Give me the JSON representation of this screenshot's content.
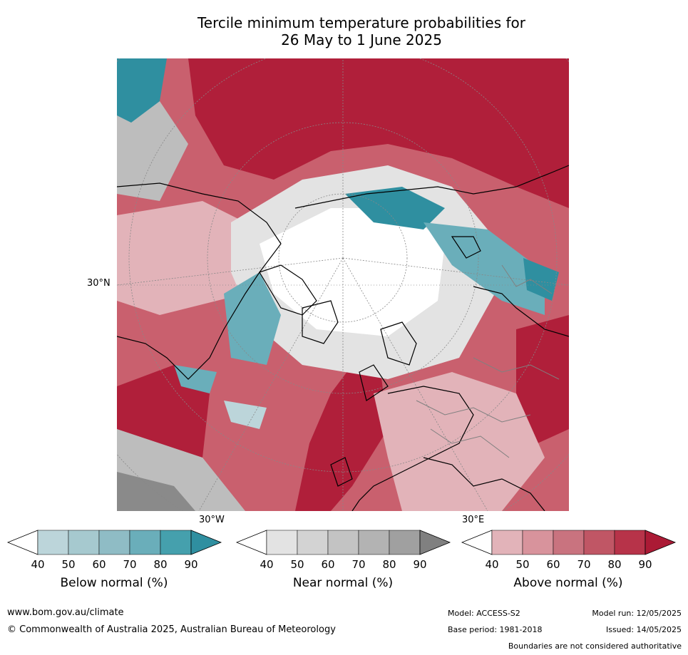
{
  "title": {
    "line1": "Tercile minimum temperature probabilities for",
    "line2": "26 May to 1 June 2025"
  },
  "map": {
    "projection": "north-polar-stereographic",
    "lat_label": "30°N",
    "lon_label_west": "30°W",
    "lon_label_east": "30°E",
    "colors": {
      "above_strong": "#b01f3a",
      "above_mid": "#c9606e",
      "above_light": "#e2b3b9",
      "below_strong": "#2f8fa0",
      "below_mid": "#6aaeba",
      "below_light": "#bcd5da",
      "near_dark": "#8a8a8a",
      "near_mid": "#bdbdbd",
      "near_light": "#e3e3e3"
    }
  },
  "colorbars": [
    {
      "title": "Below normal (%)",
      "ticks": [
        "40",
        "50",
        "60",
        "70",
        "80",
        "90"
      ],
      "colors": [
        "#ffffff",
        "#bcd5da",
        "#a6c9cf",
        "#8fbcc5",
        "#6aaeba",
        "#45a0ad",
        "#2f8fa0"
      ]
    },
    {
      "title": "Near normal (%)",
      "ticks": [
        "40",
        "50",
        "60",
        "70",
        "80",
        "90"
      ],
      "colors": [
        "#ffffff",
        "#e3e3e3",
        "#d3d3d3",
        "#c3c3c3",
        "#b3b3b3",
        "#a0a0a0",
        "#808080"
      ]
    },
    {
      "title": "Above normal (%)",
      "ticks": [
        "40",
        "50",
        "60",
        "70",
        "80",
        "90"
      ],
      "colors": [
        "#ffffff",
        "#e2b3b9",
        "#d8939c",
        "#c9737f",
        "#c05665",
        "#b73349",
        "#ab1a35"
      ]
    }
  ],
  "footer": {
    "website": "www.bom.gov.au/climate",
    "copyright": "© Commonwealth of Australia 2025, Australian Bureau of Meteorology",
    "model": "Model: ACCESS-S2",
    "base_period": "Base period: 1981-2018",
    "model_run": "Model run: 12/05/2025",
    "issued": "Issued: 14/05/2025",
    "disclaimer": "Boundaries are not considered authoritative"
  }
}
